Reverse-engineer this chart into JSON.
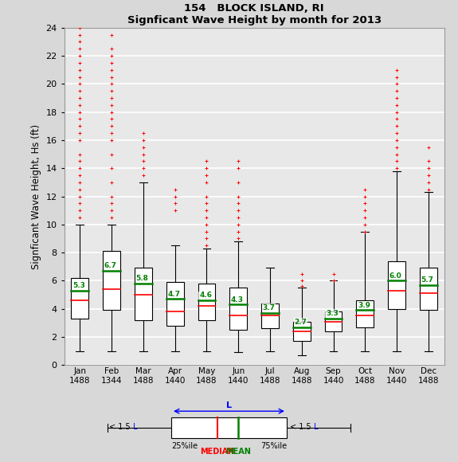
{
  "title1": "154   BLOCK ISLAND, RI",
  "title2": "Signficant Wave Height by month for 2013",
  "ylabel": "Signficant Wave Height, Hs (ft)",
  "months": [
    "Jan",
    "Feb",
    "Mar",
    "Apr",
    "May",
    "Jun",
    "Jul",
    "Aug",
    "Sep",
    "Oct",
    "Nov",
    "Dec"
  ],
  "counts": [
    1488,
    1344,
    1488,
    1440,
    1488,
    1440,
    1488,
    1488,
    1440,
    1488,
    1440,
    1488
  ],
  "means": [
    5.3,
    6.7,
    5.8,
    4.7,
    4.6,
    4.3,
    3.7,
    2.7,
    3.3,
    3.9,
    6.0,
    5.7
  ],
  "medians": [
    4.6,
    5.4,
    5.0,
    3.8,
    4.2,
    3.5,
    3.5,
    2.4,
    3.1,
    3.5,
    5.3,
    5.1
  ],
  "q1": [
    3.3,
    3.9,
    3.2,
    2.8,
    3.2,
    2.5,
    2.6,
    1.7,
    2.4,
    2.7,
    4.0,
    3.9
  ],
  "q3": [
    6.2,
    8.1,
    6.9,
    5.9,
    5.8,
    5.5,
    4.4,
    3.1,
    3.8,
    4.6,
    7.4,
    6.9
  ],
  "whislo": [
    1.0,
    1.0,
    1.0,
    1.0,
    1.0,
    0.9,
    1.0,
    0.7,
    1.0,
    1.0,
    1.0,
    1.0
  ],
  "whishi": [
    10.0,
    10.0,
    13.0,
    8.5,
    8.3,
    8.8,
    6.9,
    5.5,
    6.0,
    9.5,
    13.8,
    12.3
  ],
  "fliers_y": [
    [
      10.5,
      11.0,
      11.5,
      12.0,
      12.5,
      13.0,
      13.5,
      14.0,
      14.5,
      15.0,
      16.0,
      16.5,
      17.0,
      17.5,
      18.0,
      18.5,
      19.0,
      19.5,
      20.0,
      20.5,
      21.0,
      21.5,
      22.0,
      22.5,
      23.0,
      23.5,
      24.0
    ],
    [
      10.5,
      11.0,
      11.5,
      12.0,
      13.0,
      14.0,
      15.0,
      16.0,
      16.5,
      17.0,
      17.5,
      18.0,
      18.5,
      19.0,
      19.5,
      20.0,
      20.5,
      21.0,
      21.5,
      22.0,
      22.5,
      23.5
    ],
    [
      13.5,
      14.0,
      14.5,
      15.0,
      15.5,
      16.0,
      16.5
    ],
    [
      11.0,
      11.5,
      12.0,
      12.5
    ],
    [
      8.5,
      9.0,
      9.5,
      10.0,
      10.5,
      11.0,
      11.5,
      12.0,
      13.0,
      13.5,
      14.0,
      14.5
    ],
    [
      9.0,
      9.5,
      10.0,
      10.5,
      11.0,
      11.5,
      12.0,
      13.0,
      14.0,
      14.5
    ],
    [],
    [
      5.6,
      6.0,
      6.5
    ],
    [
      6.0,
      6.5
    ],
    [
      9.5,
      10.0,
      10.5,
      11.0,
      11.5,
      12.0,
      12.5
    ],
    [
      14.0,
      14.5,
      15.0,
      15.5,
      16.0,
      16.5,
      17.0,
      17.5,
      18.0,
      18.5,
      19.0,
      19.5,
      20.0,
      20.5,
      21.0
    ],
    [
      12.5,
      13.0,
      13.5,
      14.0,
      14.5,
      15.5
    ]
  ],
  "bg_color": "#d8d8d8",
  "plot_bg": "#e8e8e8",
  "ylim": [
    0,
    24
  ],
  "yticks": [
    0,
    2,
    4,
    6,
    8,
    10,
    12,
    14,
    16,
    18,
    20,
    22,
    24
  ]
}
